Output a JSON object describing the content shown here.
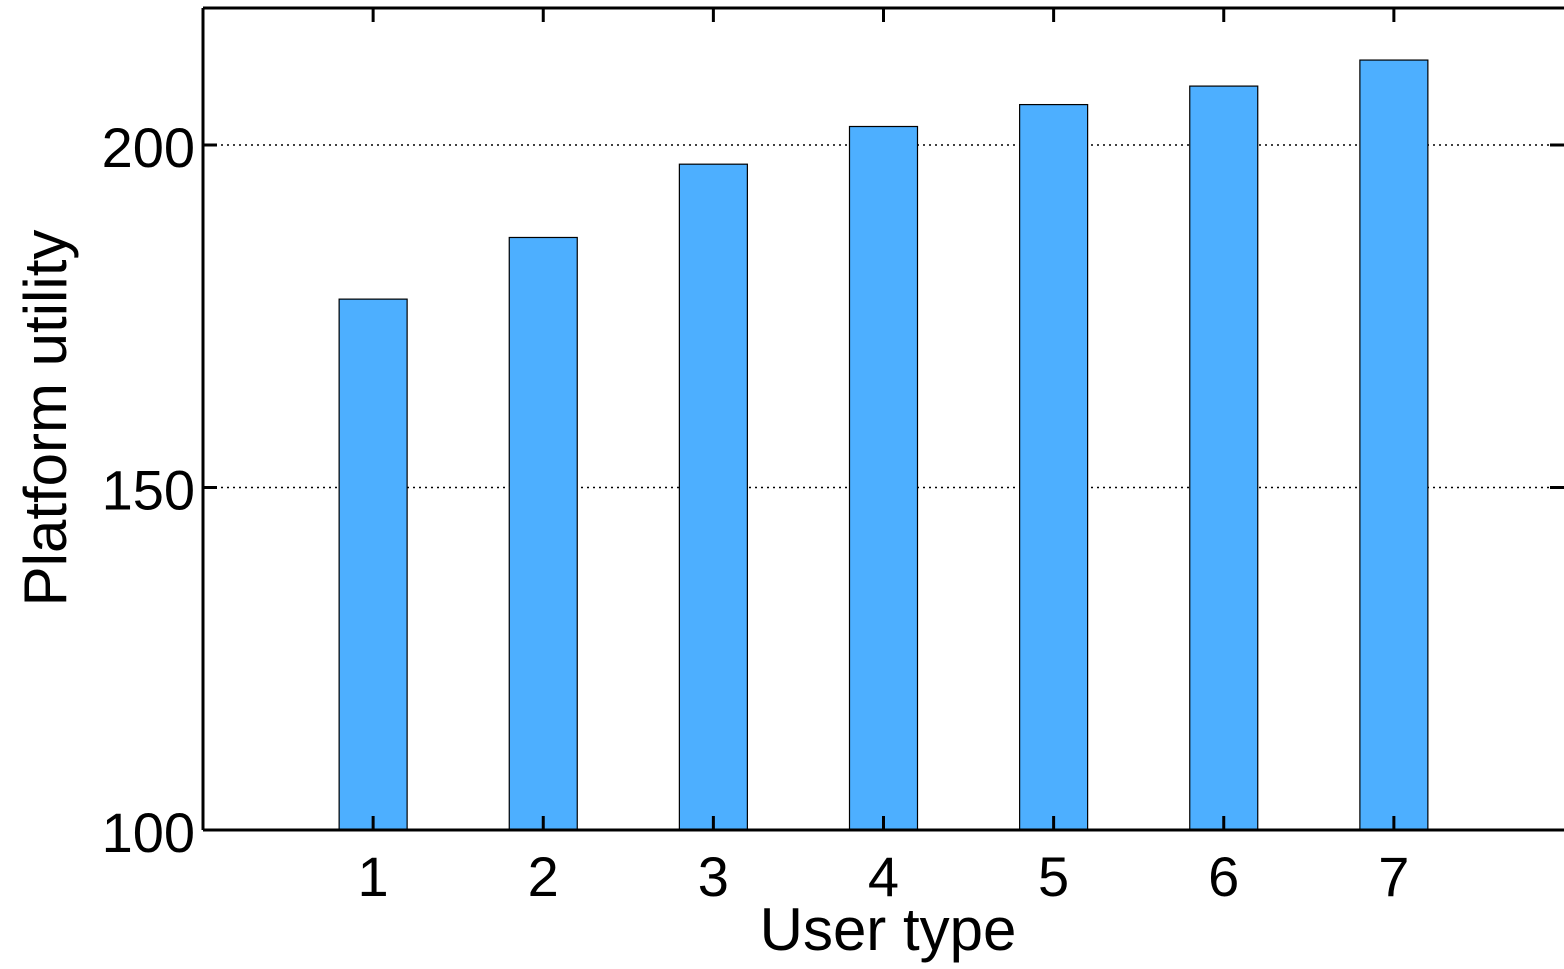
{
  "chart_data": {
    "type": "bar",
    "title": "",
    "xlabel": "User type",
    "ylabel": "Platform utility",
    "categories": [
      "1",
      "2",
      "3",
      "4",
      "5",
      "6",
      "7"
    ],
    "values": [
      177.5,
      186.5,
      197.2,
      202.7,
      205.9,
      208.6,
      212.4
    ],
    "ylim": [
      100,
      220
    ],
    "y_ticks": [
      100,
      150,
      200
    ],
    "y_tick_labels": [
      "100",
      "150",
      "200"
    ],
    "grid": "horizontal dotted at 150 and 200",
    "legend": "none",
    "bar_color": "#4DAFFF",
    "bar_edge_color": "#000000"
  }
}
